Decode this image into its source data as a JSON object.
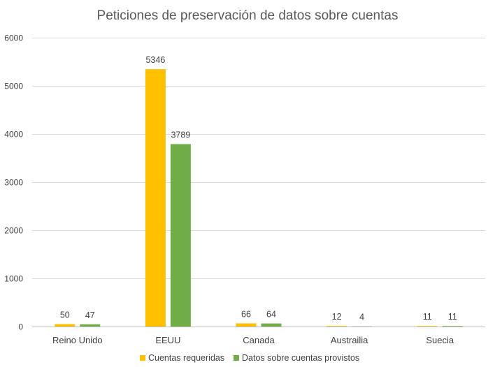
{
  "chart_data": {
    "type": "bar",
    "title": "Peticiones de preservación de datos sobre cuentas",
    "categories": [
      "Reino Unido",
      "EEUU",
      "Canada",
      "Austrailia",
      "Suecia"
    ],
    "series": [
      {
        "name": "Cuentas requeridas",
        "color": "#FFC000",
        "values": [
          50,
          5346,
          66,
          12,
          11
        ]
      },
      {
        "name": "Datos sobre cuentas provistos",
        "color": "#70AD47",
        "values": [
          47,
          3789,
          64,
          4,
          11
        ]
      }
    ],
    "ylim": [
      0,
      6000
    ],
    "yticks": [
      0,
      1000,
      2000,
      3000,
      4000,
      5000,
      6000
    ],
    "grid": true,
    "legend": "bottom",
    "xlabel": "",
    "ylabel": ""
  }
}
